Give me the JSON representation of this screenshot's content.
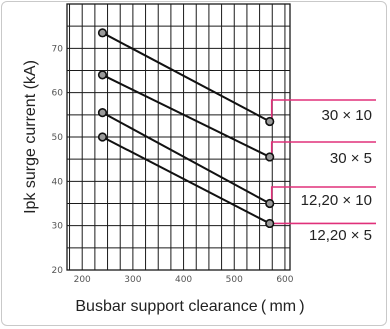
{
  "chart_data": {
    "type": "line",
    "title": "",
    "xlabel": "Busbar support clearance ( mm )",
    "ylabel": "Ipk surge current (kA)",
    "xlim": [
      170,
      610
    ],
    "ylim": [
      20,
      80
    ],
    "xticks": [
      200,
      300,
      400,
      500,
      600
    ],
    "yticks": [
      20,
      30,
      40,
      50,
      60,
      70
    ],
    "grid": true,
    "legend": "right, labels connected to line ends",
    "colors": {
      "line": "#111111",
      "label_connector": "#e0307a",
      "grid": "#1a1a1a"
    },
    "series": [
      {
        "name": "30 × 10",
        "x": [
          240,
          570
        ],
        "y": [
          73.5,
          53.5
        ]
      },
      {
        "name": "30 × 5",
        "x": [
          240,
          570
        ],
        "y": [
          64,
          45.5
        ]
      },
      {
        "name": "12,20 × 10",
        "x": [
          240,
          570
        ],
        "y": [
          55.5,
          35
        ]
      },
      {
        "name": "12,20 × 5",
        "x": [
          240,
          570
        ],
        "y": [
          50,
          30.5
        ]
      }
    ]
  }
}
